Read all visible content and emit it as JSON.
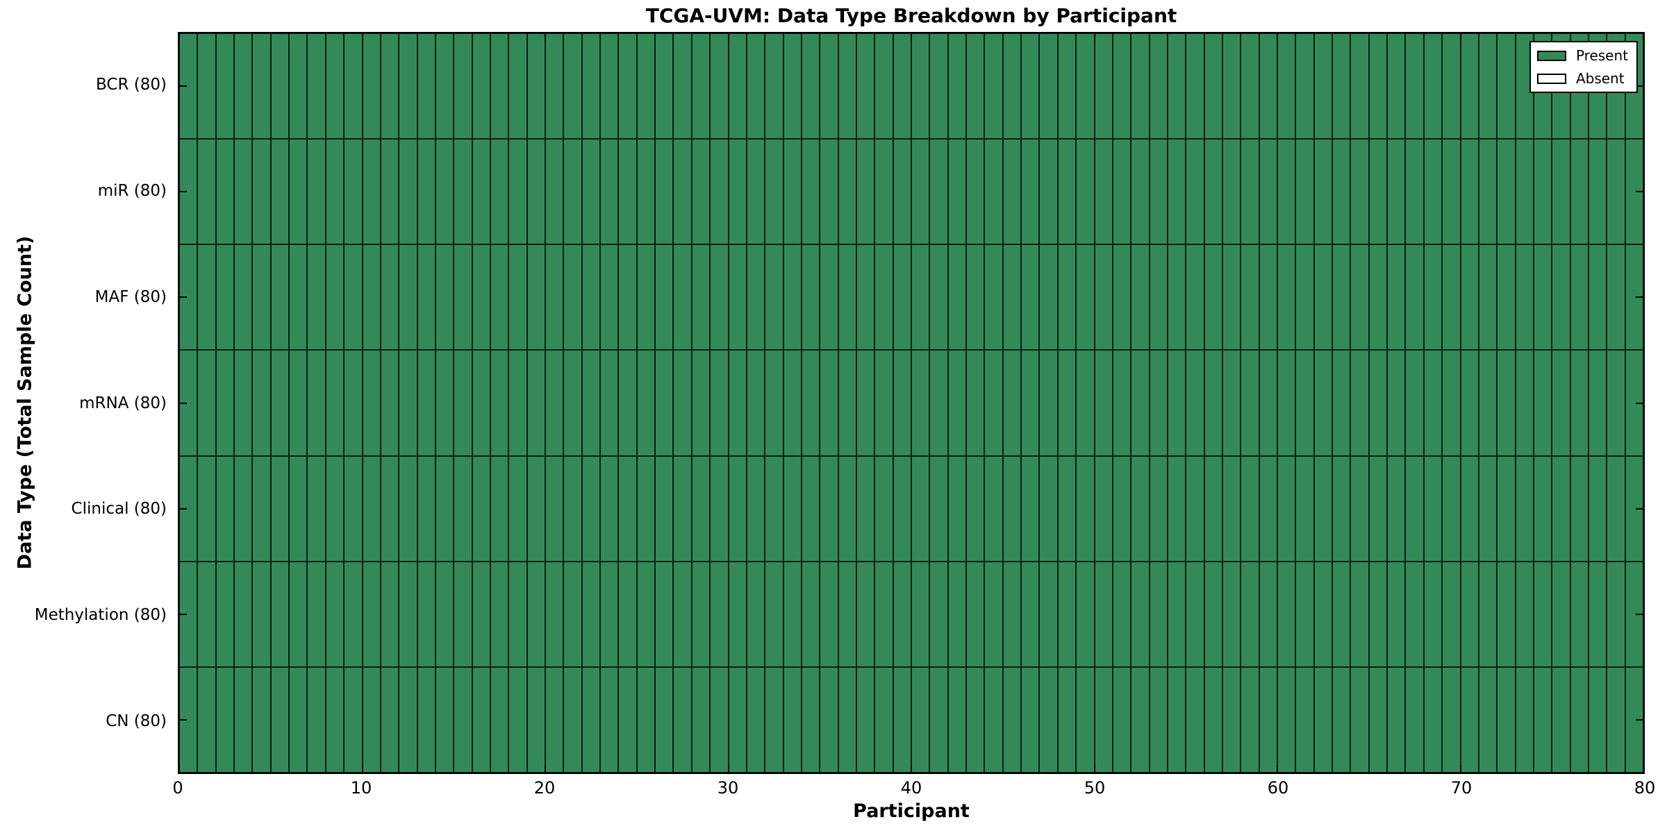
{
  "chart_data": {
    "type": "heatmap",
    "title": "TCGA-UVM: Data Type Breakdown by Participant",
    "xlabel": "Participant",
    "ylabel": "Data Type (Total Sample Count)",
    "xlim": [
      0,
      80
    ],
    "x_ticks": [
      0,
      10,
      20,
      30,
      40,
      50,
      60,
      70,
      80
    ],
    "n_participants": 80,
    "rows": [
      {
        "label": "BCR (80)",
        "data_type": "BCR",
        "total_samples": 80,
        "present_count": 80,
        "absent_count": 0
      },
      {
        "label": "miR (80)",
        "data_type": "miR",
        "total_samples": 80,
        "present_count": 80,
        "absent_count": 0
      },
      {
        "label": "MAF (80)",
        "data_type": "MAF",
        "total_samples": 80,
        "present_count": 80,
        "absent_count": 0
      },
      {
        "label": "mRNA (80)",
        "data_type": "mRNA",
        "total_samples": 80,
        "present_count": 80,
        "absent_count": 0
      },
      {
        "label": "Clinical (80)",
        "data_type": "Clinical",
        "total_samples": 80,
        "present_count": 80,
        "absent_count": 0
      },
      {
        "label": "Methylation (80)",
        "data_type": "Methylation",
        "total_samples": 80,
        "present_count": 80,
        "absent_count": 0
      },
      {
        "label": "CN (80)",
        "data_type": "CN",
        "total_samples": 80,
        "present_count": 80,
        "absent_count": 0
      }
    ],
    "legend": {
      "position": "upper-right",
      "entries": [
        {
          "label": "Present",
          "color": "#338a58"
        },
        {
          "label": "Absent",
          "color": "#ffffff"
        }
      ]
    },
    "colors": {
      "present": "#338a58",
      "absent": "#ffffff",
      "cell_border": "#1b1b1b",
      "axis_frame": "#000000",
      "background": "#ffffff",
      "text": "#000000"
    }
  }
}
